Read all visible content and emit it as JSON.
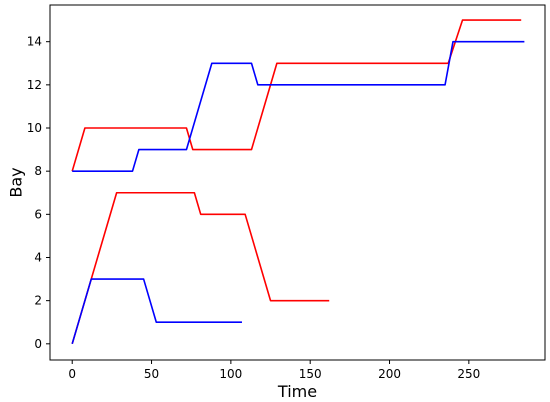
{
  "chart_data": {
    "type": "line",
    "title": "",
    "xlabel": "Time",
    "ylabel": "Bay",
    "xlim": [
      -14,
      298
    ],
    "ylim": [
      -0.75,
      15.7
    ],
    "xticks": [
      0,
      50,
      100,
      150,
      200,
      250
    ],
    "yticks": [
      0,
      2,
      4,
      6,
      8,
      10,
      12,
      14
    ],
    "grid": false,
    "legend": "none",
    "series": [
      {
        "color": "#ff0000",
        "x": [
          0,
          8,
          72,
          76,
          113,
          129,
          237,
          246,
          283
        ],
        "y": [
          8,
          10,
          10,
          9,
          9,
          13,
          13,
          15,
          15
        ]
      },
      {
        "color": "#0000ff",
        "x": [
          0,
          38,
          42,
          72,
          88,
          113,
          117,
          235,
          240,
          285
        ],
        "y": [
          8,
          8,
          9,
          9,
          13,
          13,
          12,
          12,
          14,
          14
        ]
      },
      {
        "color": "#ff0000",
        "x": [
          0,
          28,
          77,
          81,
          109,
          125,
          162
        ],
        "y": [
          0,
          7,
          7,
          6,
          6,
          2,
          2
        ]
      },
      {
        "color": "#0000ff",
        "x": [
          0,
          12,
          45,
          53,
          107
        ],
        "y": [
          0,
          3,
          3,
          1,
          1
        ]
      }
    ]
  }
}
